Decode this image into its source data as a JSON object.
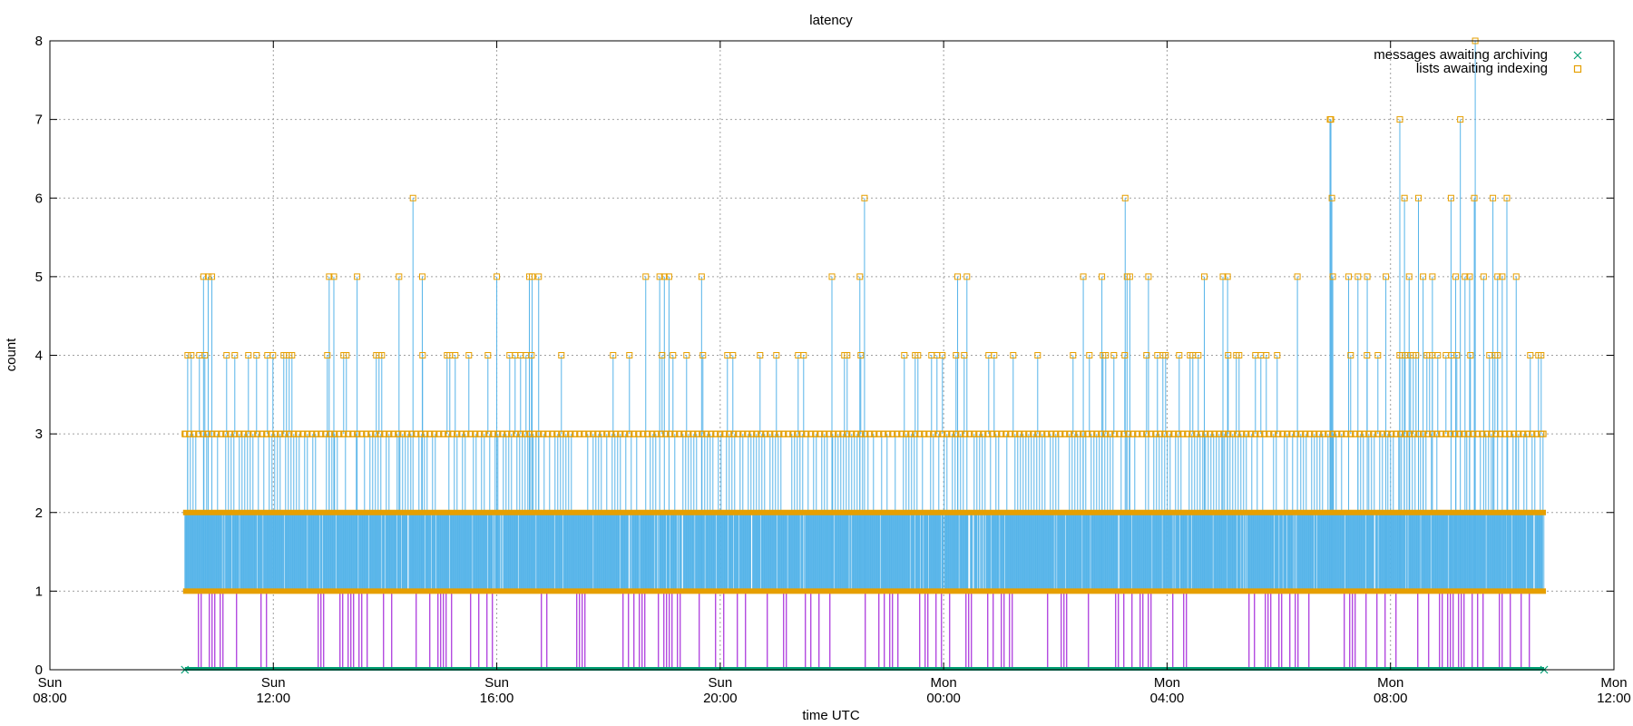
{
  "chart_data": {
    "type": "scatter",
    "title": "latency",
    "xlabel": "time UTC",
    "ylabel": "count",
    "xlim": [
      "Sun 08:00",
      "Mon 12:00"
    ],
    "ylim": [
      0,
      8
    ],
    "y_ticks": [
      0,
      1,
      2,
      3,
      4,
      5,
      6,
      7,
      8
    ],
    "x_ticks": [
      {
        "day": "Sun",
        "time": "08:00"
      },
      {
        "day": "Sun",
        "time": "12:00"
      },
      {
        "day": "Sun",
        "time": "16:00"
      },
      {
        "day": "Sun",
        "time": "20:00"
      },
      {
        "day": "Mon",
        "time": "00:00"
      },
      {
        "day": "Mon",
        "time": "04:00"
      },
      {
        "day": "Mon",
        "time": "08:00"
      },
      {
        "day": "Mon",
        "time": "12:00"
      }
    ],
    "grid": true,
    "legend_position": "top-right",
    "time_range": [
      "Sun 10:25",
      "Mon 10:45"
    ],
    "series": [
      {
        "name": "messages awaiting archiving",
        "marker": "cross",
        "color": "#009e73",
        "values_summary": "0 throughout Sun 10:25 – Mon 10:45",
        "points": [
          {
            "x": "Sun 10:25",
            "y": 0
          },
          {
            "x": "Mon 10:45",
            "y": 0
          }
        ]
      },
      {
        "name": "lists awaiting indexing",
        "marker": "square",
        "color": "#e69f00",
        "line_color": "#56b4e9",
        "values_summary": "mostly 1–3 throughout; many 4s; peaks listed in points",
        "points": [
          {
            "x": "Sun 10:28",
            "y": 4
          },
          {
            "x": "Sun 10:45",
            "y": 5
          },
          {
            "x": "Sun 10:50",
            "y": 5
          },
          {
            "x": "Sun 10:54",
            "y": 5
          },
          {
            "x": "Sun 13:00",
            "y": 5
          },
          {
            "x": "Sun 13:05",
            "y": 5
          },
          {
            "x": "Sun 13:30",
            "y": 5
          },
          {
            "x": "Sun 14:15",
            "y": 5
          },
          {
            "x": "Sun 14:30",
            "y": 6
          },
          {
            "x": "Sun 14:40",
            "y": 5
          },
          {
            "x": "Sun 16:00",
            "y": 5
          },
          {
            "x": "Sun 16:35",
            "y": 5
          },
          {
            "x": "Sun 16:38",
            "y": 5
          },
          {
            "x": "Sun 16:45",
            "y": 5
          },
          {
            "x": "Sun 18:40",
            "y": 5
          },
          {
            "x": "Sun 18:55",
            "y": 5
          },
          {
            "x": "Sun 19:00",
            "y": 5
          },
          {
            "x": "Sun 19:05",
            "y": 5
          },
          {
            "x": "Sun 19:40",
            "y": 5
          },
          {
            "x": "Sun 22:00",
            "y": 5
          },
          {
            "x": "Sun 22:30",
            "y": 5
          },
          {
            "x": "Sun 22:35",
            "y": 6
          },
          {
            "x": "Mon 00:15",
            "y": 5
          },
          {
            "x": "Mon 00:25",
            "y": 5
          },
          {
            "x": "Mon 02:30",
            "y": 5
          },
          {
            "x": "Mon 02:50",
            "y": 5
          },
          {
            "x": "Mon 03:15",
            "y": 6
          },
          {
            "x": "Mon 03:17",
            "y": 5
          },
          {
            "x": "Mon 03:20",
            "y": 5
          },
          {
            "x": "Mon 03:40",
            "y": 5
          },
          {
            "x": "Mon 04:40",
            "y": 5
          },
          {
            "x": "Mon 05:00",
            "y": 5
          },
          {
            "x": "Mon 05:05",
            "y": 5
          },
          {
            "x": "Mon 06:20",
            "y": 5
          },
          {
            "x": "Mon 06:55",
            "y": 7
          },
          {
            "x": "Mon 06:56",
            "y": 7
          },
          {
            "x": "Mon 06:57",
            "y": 6
          },
          {
            "x": "Mon 06:58",
            "y": 5
          },
          {
            "x": "Mon 07:15",
            "y": 5
          },
          {
            "x": "Mon 07:25",
            "y": 5
          },
          {
            "x": "Mon 07:35",
            "y": 5
          },
          {
            "x": "Mon 07:55",
            "y": 5
          },
          {
            "x": "Mon 08:10",
            "y": 7
          },
          {
            "x": "Mon 08:15",
            "y": 6
          },
          {
            "x": "Mon 08:20",
            "y": 5
          },
          {
            "x": "Mon 08:30",
            "y": 6
          },
          {
            "x": "Mon 08:35",
            "y": 5
          },
          {
            "x": "Mon 08:45",
            "y": 5
          },
          {
            "x": "Mon 09:05",
            "y": 6
          },
          {
            "x": "Mon 09:10",
            "y": 5
          },
          {
            "x": "Mon 09:15",
            "y": 7
          },
          {
            "x": "Mon 09:20",
            "y": 5
          },
          {
            "x": "Mon 09:25",
            "y": 5
          },
          {
            "x": "Mon 09:30",
            "y": 6
          },
          {
            "x": "Mon 09:31",
            "y": 8
          },
          {
            "x": "Mon 09:40",
            "y": 5
          },
          {
            "x": "Mon 09:50",
            "y": 6
          },
          {
            "x": "Mon 09:55",
            "y": 5
          },
          {
            "x": "Mon 10:00",
            "y": 5
          },
          {
            "x": "Mon 10:05",
            "y": 6
          },
          {
            "x": "Mon 10:15",
            "y": 5
          }
        ]
      }
    ],
    "colors": {
      "axes": "#000000",
      "grid": "#a0a0a0",
      "impulse_low": "#9400d3",
      "impulse_high": "#56b4e9",
      "square_marker": "#e69f00",
      "cross_marker": "#009e73"
    }
  }
}
